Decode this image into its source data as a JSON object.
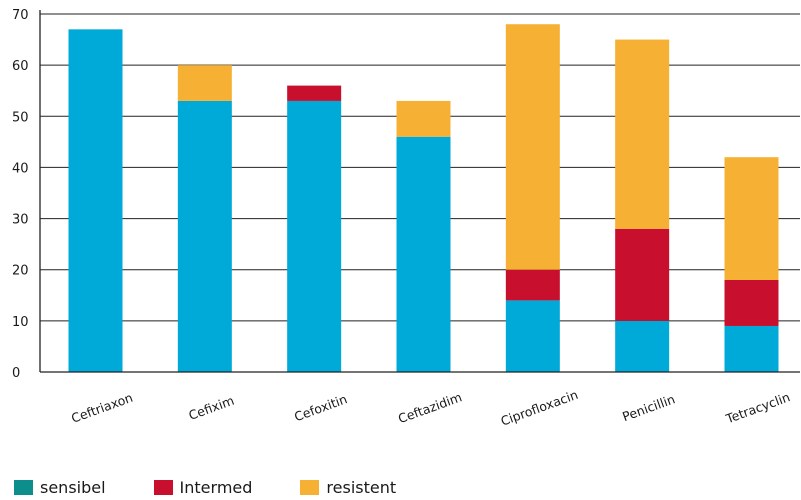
{
  "chart_data": {
    "type": "bar",
    "stacked": true,
    "categories": [
      "Ceftriaxon",
      "Cefixim",
      "Cefoxitin",
      "Ceftazidim",
      "Ciprofloxacin",
      "Penicillin",
      "Tetracyclin"
    ],
    "series": [
      {
        "name": "sensibel",
        "values": [
          67,
          53,
          53,
          46,
          14,
          10,
          9
        ],
        "color": "#00aad8",
        "legend_color": "#0c8f8c"
      },
      {
        "name": "Intermed",
        "values": [
          0,
          0,
          3,
          0,
          6,
          18,
          9
        ],
        "color": "#c8102e",
        "legend_color": "#c8102e"
      },
      {
        "name": "resistent",
        "values": [
          0,
          7,
          0,
          7,
          48,
          37,
          24
        ],
        "color": "#f6b033",
        "legend_color": "#f6b033"
      }
    ],
    "yticks": [
      0,
      10,
      20,
      30,
      40,
      50,
      60,
      70
    ],
    "ylim": [
      0,
      70
    ],
    "grid": true,
    "legend_position": "bottom-left",
    "title": "",
    "xlabel": "",
    "ylabel": ""
  }
}
